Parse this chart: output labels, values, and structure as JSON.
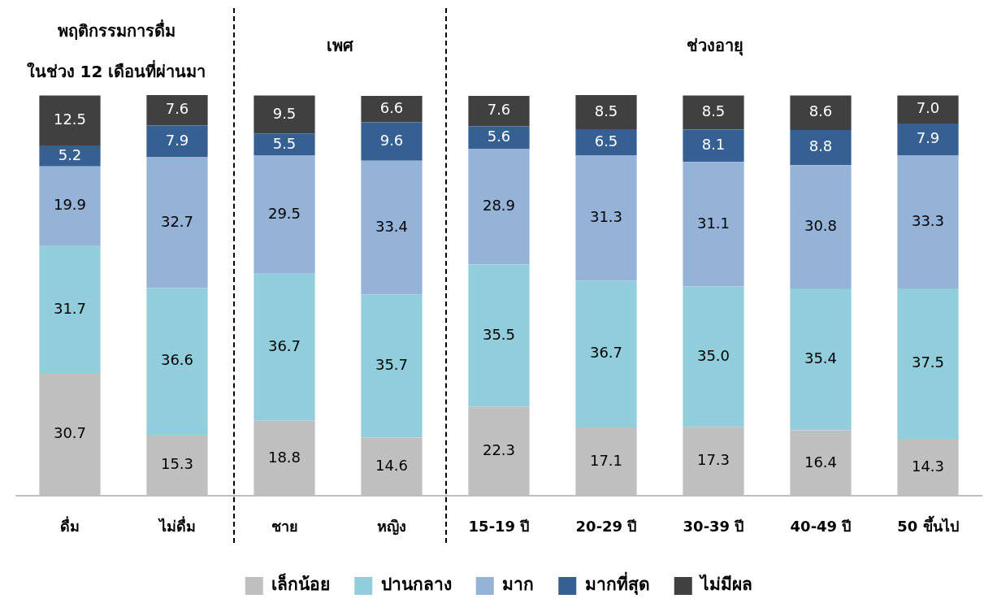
{
  "chart_data": {
    "type": "bar",
    "stacked": true,
    "legend": "bottom",
    "categories": [
      "ดื่ม",
      "ไม่ดื่ม",
      "ชาย",
      "หญิง",
      "15-19 ปี",
      "20-29 ปี",
      "30-39 ปี",
      "40-49 ปี",
      "50 ขึ้นไป"
    ],
    "series": [
      {
        "name": "เล็กน้อย",
        "color": "#bfbfbf",
        "values": [
          30.7,
          15.3,
          18.8,
          14.6,
          22.3,
          17.1,
          17.3,
          16.4,
          14.3
        ],
        "value_labels": [
          "30.7",
          "15.3",
          "18.8",
          "14.6",
          "22.3",
          "17.1",
          "17.3",
          "16.4",
          "14.3"
        ]
      },
      {
        "name": "ปานกลาง",
        "color": "#92cddc",
        "values": [
          31.7,
          36.6,
          36.7,
          35.7,
          35.5,
          36.7,
          35.0,
          35.4,
          37.5
        ],
        "value_labels": [
          "31.7",
          "36.6",
          "36.7",
          "35.7",
          "35.5",
          "36.7",
          "35.0",
          "35.4",
          "37.5"
        ]
      },
      {
        "name": "มาก",
        "color": "#95b3d7",
        "values": [
          19.9,
          32.7,
          29.5,
          33.4,
          28.9,
          31.3,
          31.1,
          30.8,
          33.3
        ],
        "value_labels": [
          "19.9",
          "32.7",
          "29.5",
          "33.4",
          "28.9",
          "31.3",
          "31.1",
          "30.8",
          "33.3"
        ]
      },
      {
        "name": "มากที่สุด",
        "color": "#366092",
        "values": [
          5.2,
          7.9,
          5.5,
          9.6,
          5.6,
          6.5,
          8.1,
          8.8,
          7.9
        ],
        "value_labels": [
          "5.2",
          "7.9",
          "5.5",
          "9.6",
          "5.6",
          "6.5",
          "8.1",
          "8.8",
          "7.9"
        ]
      },
      {
        "name": "ไม่มีผล",
        "color": "#404040",
        "values": [
          12.5,
          7.6,
          9.5,
          6.6,
          7.6,
          8.5,
          8.5,
          8.6,
          7.0
        ],
        "value_labels": [
          "12.5",
          "7.6",
          "9.5",
          "6.6",
          "7.6",
          "8.5",
          "8.5",
          "8.6",
          "7.0"
        ]
      }
    ],
    "annotations": [
      "พฤติกรรมการดื่ม",
      "ในช่วง 12 เดือนที่ผ่านมา",
      "เพศ",
      "ช่วงอายุ"
    ]
  }
}
